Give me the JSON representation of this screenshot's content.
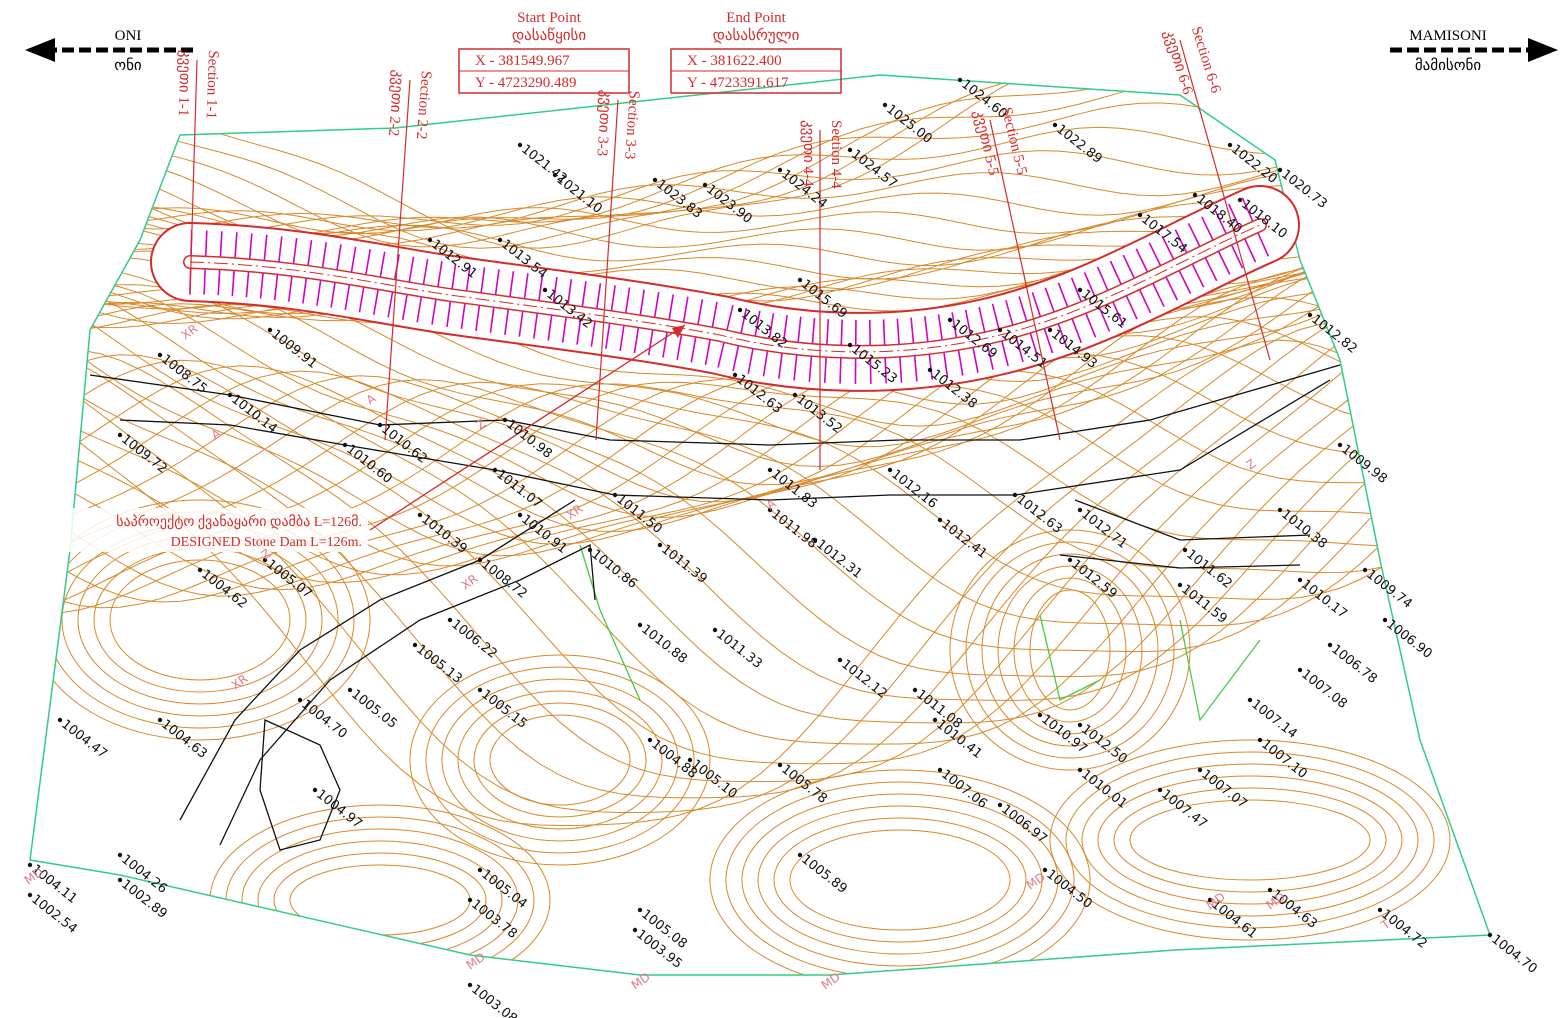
{
  "header": {
    "left_road": "ONI",
    "left_road_ka": "ონი",
    "right_road": "MAMISONI",
    "right_road_ka": "მამისონი"
  },
  "start_point": {
    "title": "Start Point",
    "title_ka": "დასაწყისი",
    "x": "X - 381549.967",
    "y": "Y - 4723290.489"
  },
  "end_point": {
    "title": "End Point",
    "title_ka": "დასასრული",
    "x": "X - 381622.400",
    "y": "Y - 4723391.617"
  },
  "sections": [
    {
      "label": "Section 1-1",
      "label_ka": "კვეთი 1-1"
    },
    {
      "label": "Section 2-2",
      "label_ka": "კვეთი 2-2"
    },
    {
      "label": "Section 3-3",
      "label_ka": "კვეთი 3-3"
    },
    {
      "label": "Section 4-4",
      "label_ka": "კვეთი 4-4"
    },
    {
      "label": "Section 5-5",
      "label_ka": "კვეთი 5-5"
    },
    {
      "label": "Section 6-6",
      "label_ka": "კვეთი 6-6"
    }
  ],
  "dam_label": {
    "ka": "საპროექტო ქვანაყარი დამბა L=126მ.",
    "en": "DESIGNED Stone Dam L=126m."
  },
  "spot_heights": [
    "1024.60",
    "1025.00",
    "1022.89",
    "1024.57",
    "1024.24",
    "1021.42",
    "1021.10",
    "1023.83",
    "1023.90",
    "1022.20",
    "1020.73",
    "1018.10",
    "1018.40",
    "1017.54",
    "1012.91",
    "1013.54",
    "1015.69",
    "1015.61",
    "1014.93",
    "1013.82",
    "1013.42",
    "1012.69",
    "1014.51",
    "1012.38",
    "1015.23",
    "1013.52",
    "1012.63",
    "1012.16",
    "1012.63",
    "1012.71",
    "1011.62",
    "1011.59",
    "1012.59",
    "1011.83",
    "1011.98",
    "1012.31",
    "1012.41",
    "1011.50",
    "1011.39",
    "1010.86",
    "1010.88",
    "1011.33",
    "1012.12",
    "1011.08",
    "1010.41",
    "1010.98",
    "1010.62",
    "1010.14",
    "1010.60",
    "1011.07",
    "1010.91",
    "1010.39",
    "1008.72",
    "1006.22",
    "1005.13",
    "1005.15",
    "1005.05",
    "1004.70",
    "1004.62",
    "1005.07",
    "1004.47",
    "1004.63",
    "1004.97",
    "1004.88",
    "1005.10",
    "1005.78",
    "1005.89",
    "1007.06",
    "1006.97",
    "1007.47",
    "1007.07",
    "1007.10",
    "1007.14",
    "1007.08",
    "1006.78",
    "1006.90",
    "1009.74",
    "1010.17",
    "1010.38",
    "1009.98",
    "1012.82",
    "1004.26",
    "1002.89",
    "1003.08",
    "1003.78",
    "1005.08",
    "1003.95",
    "1005.04",
    "1004.61",
    "1004.63",
    "1004.72",
    "1004.70",
    "1004.50",
    "1004.11",
    "1002.54",
    "1010.01",
    "1012.50",
    "1010.97",
    "1009.91",
    "1008.75",
    "1009.72"
  ],
  "point_codes": [
    "XR",
    "A",
    "A",
    "Z",
    "XR",
    "A",
    "Z",
    "XR",
    "MD",
    "MD",
    "MD",
    "MD",
    "MD",
    "MD",
    "MD",
    "T",
    "XR",
    "Z"
  ]
}
